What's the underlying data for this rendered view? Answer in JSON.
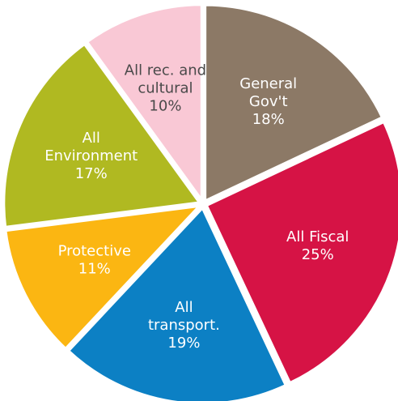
{
  "chart_data": {
    "type": "pie",
    "title": "",
    "start_angle_deg": 0,
    "direction": "clockwise",
    "slices": [
      {
        "lines": [
          "General",
          "Gov't"
        ],
        "value": 18,
        "value_label": "18%",
        "color": "#8c7966",
        "text_color": "#ffffff"
      },
      {
        "lines": [
          "All Fiscal"
        ],
        "value": 25,
        "value_label": "25%",
        "color": "#d61345",
        "text_color": "#ffffff"
      },
      {
        "lines": [
          "All",
          "transport."
        ],
        "value": 19,
        "value_label": "19%",
        "color": "#0c80c4",
        "text_color": "#ffffff"
      },
      {
        "lines": [
          "Protective"
        ],
        "value": 11,
        "value_label": "11%",
        "color": "#fbb612",
        "text_color": "#ffffff"
      },
      {
        "lines": [
          "All",
          "Environment"
        ],
        "value": 17,
        "value_label": "17%",
        "color": "#b0b921",
        "text_color": "#ffffff"
      },
      {
        "lines": [
          "All rec. and",
          "cultural"
        ],
        "value": 10,
        "value_label": "10%",
        "color": "#f9c8d5",
        "text_color": "#4a4a4a"
      }
    ]
  }
}
